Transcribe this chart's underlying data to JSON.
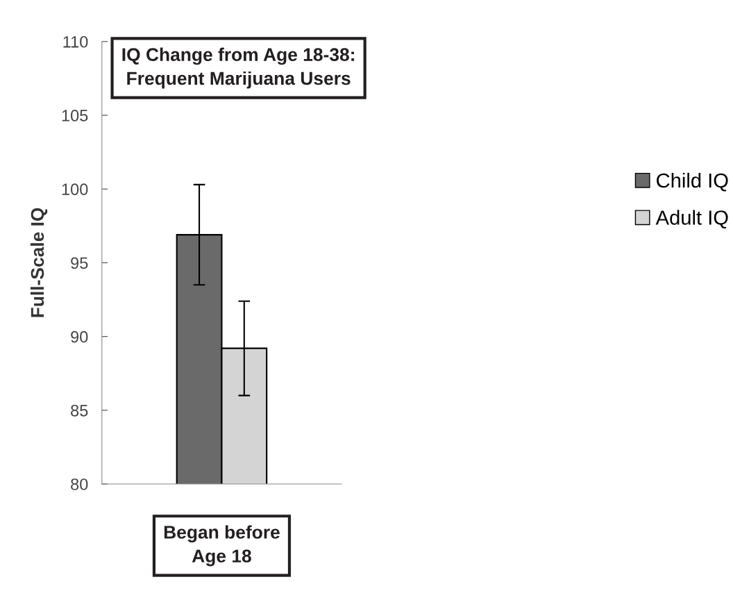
{
  "chart_data": {
    "type": "bar",
    "title": "IQ Change from Age 18-38:\nFrequent Marijuana Users",
    "ylabel": "Full-Scale IQ",
    "categories": [
      "Began before\nAge 18"
    ],
    "series": [
      {
        "name": "Child IQ",
        "color": "#6a6a6a",
        "values": [
          96.9
        ],
        "errors": [
          3.4
        ]
      },
      {
        "name": "Adult IQ",
        "color": "#d4d4d4",
        "values": [
          89.2
        ],
        "errors": [
          3.2
        ]
      }
    ],
    "ylim": [
      80,
      110
    ],
    "yticks": [
      80,
      85,
      90,
      95,
      100,
      105,
      110
    ],
    "grid": false,
    "legend": "right"
  }
}
